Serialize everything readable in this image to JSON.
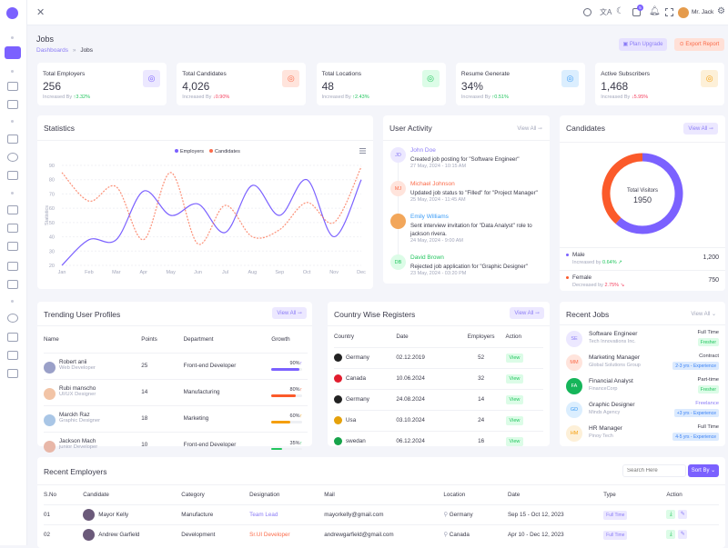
{
  "header": {
    "user": "Mr. Jack",
    "notification_count": "5"
  },
  "page": {
    "title": "Jobs",
    "breadcrumb": [
      "Dashboards",
      "Jobs"
    ],
    "plan_upgrade": "Plan Upgrade",
    "export_report": "Export Report"
  },
  "stats": [
    {
      "label": "Total Employers",
      "value": "256",
      "trend_label": "Increased By",
      "trend": "3.32%",
      "dir": "up",
      "icon": "users-icon",
      "color": "#7b61ff",
      "bg": "#ece8ff"
    },
    {
      "label": "Total Candidates",
      "value": "4,026",
      "trend_label": "Increased By",
      "trend": "0.90%",
      "dir": "down",
      "icon": "group-icon",
      "color": "#fb6b4a",
      "bg": "#ffe4dc"
    },
    {
      "label": "Total Locations",
      "value": "48",
      "trend_label": "Increased By",
      "trend": "2.43%",
      "dir": "up",
      "icon": "map-pin-icon",
      "color": "#22c55e",
      "bg": "#dcfce7"
    },
    {
      "label": "Resume Generate",
      "value": "34%",
      "trend_label": "Increased By",
      "trend": "0.51%",
      "dir": "up",
      "icon": "document-icon",
      "color": "#3b9cf6",
      "bg": "#dbeefe"
    },
    {
      "label": "Active Subscribers",
      "value": "1,468",
      "trend_label": "Increased By",
      "trend": "5.95%",
      "dir": "down",
      "icon": "id-card-icon",
      "color": "#f59e0b",
      "bg": "#fdf0d8"
    }
  ],
  "statistics": {
    "title": "Statistics",
    "menu_icon": "hamburger-icon"
  },
  "chart_data": {
    "type": "line",
    "title": "",
    "ylabel": "Statistics",
    "xlabel": "",
    "categories": [
      "Jan",
      "Feb",
      "Mar",
      "Apr",
      "May",
      "Jun",
      "Jul",
      "Aug",
      "Sep",
      "Oct",
      "Nov",
      "Dec"
    ],
    "ylim": [
      20,
      90
    ],
    "yticks": [
      20,
      30,
      40,
      50,
      60,
      70,
      80,
      90
    ],
    "legend": "top-center",
    "grid": true,
    "series": [
      {
        "name": "Employers",
        "color": "#7b61ff",
        "values": [
          20,
          38,
          38,
          72,
          55,
          63,
          43,
          76,
          55,
          80,
          40,
          80
        ]
      },
      {
        "name": "Candidates",
        "color": "#fb6b4a",
        "dashed": true,
        "values": [
          85,
          65,
          75,
          38,
          85,
          35,
          62,
          40,
          45,
          64,
          50,
          89
        ]
      }
    ]
  },
  "activity": {
    "title": "User Activity",
    "view_all": "View All",
    "items": [
      {
        "initials": "JD",
        "name": "John Doe",
        "text": "Created job posting for \"Software Engineer\"",
        "time": "27 May, 2024 - 10:15 AM",
        "color": "#8b7cf6",
        "bg": "#ece8ff"
      },
      {
        "initials": "MJ",
        "name": "Michael Johnson",
        "text": "Updated job status to \"Filled\" for \"Project Manager\"",
        "time": "25 May, 2024 - 11:45 AM",
        "color": "#fb6b4a",
        "bg": "#ffe4dc"
      },
      {
        "initials": "",
        "name": "Emily Williams",
        "text": "Sent interview invitation for \"Data Analyst\" role to jackson rivera.",
        "time": "24 May, 2024 - 9:00 AM",
        "color": "#3b9cf6",
        "bg": "#f2a65a"
      },
      {
        "initials": "DB",
        "name": "David Brown",
        "text": "Rejected job application for \"Graphic Designer\"",
        "time": "23 May, 2024 - 03:20 PM",
        "color": "#22c55e",
        "bg": "#dcfce7"
      }
    ]
  },
  "candidates": {
    "title": "Candidates",
    "view_all": "View All",
    "center_label": "Total Visitors",
    "total": "1950",
    "segments": [
      {
        "label": "Male",
        "trend_label": "Increased by",
        "trend": "0.64%",
        "dir": "up",
        "value": "1,200",
        "number": 1200,
        "color": "#7b61ff"
      },
      {
        "label": "Female",
        "trend_label": "Decreased by",
        "trend": "2.75%",
        "dir": "down",
        "value": "750",
        "number": 750,
        "color": "#fb5a2a"
      }
    ]
  },
  "trending": {
    "title": "Trending User Profiles",
    "view_all": "View All",
    "columns": [
      "Name",
      "Points",
      "Department",
      "Growth"
    ],
    "rows": [
      {
        "name": "Robert anii",
        "role": "Web Developer",
        "points": "25",
        "dept": "Front-end Developer",
        "growth": "90%",
        "pct": 90,
        "color": "#7b61ff",
        "avatar": "#9aa0c8"
      },
      {
        "name": "Rubi manscho",
        "role": "UI/UX Designer",
        "points": "14",
        "dept": "Manufacturing",
        "growth": "80%",
        "pct": 80,
        "color": "#fb5a2a",
        "avatar": "#f2c4a6"
      },
      {
        "name": "Marckh Raz",
        "role": "Graphic Designer",
        "points": "18",
        "dept": "Marketing",
        "growth": "60%",
        "pct": 60,
        "color": "#f59e0b",
        "avatar": "#a9c6e6"
      },
      {
        "name": "Jackson Mach",
        "role": "junior Developer",
        "points": "10",
        "dept": "Front-end Developer",
        "growth": "35%",
        "pct": 35,
        "color": "#22c55e",
        "avatar": "#e8b7a8"
      }
    ]
  },
  "country": {
    "title": "Country Wise Registers",
    "view_all": "View All",
    "columns": [
      "Country",
      "Date",
      "Employers",
      "Action"
    ],
    "rows": [
      {
        "country": "Germany",
        "date": "02.12.2019",
        "employers": "52",
        "action": "View",
        "flag": "#222"
      },
      {
        "country": "Canada",
        "date": "10.06.2024",
        "employers": "32",
        "action": "View",
        "flag": "#e11d2e"
      },
      {
        "country": "Germany",
        "date": "24.08.2024",
        "employers": "14",
        "action": "View",
        "flag": "#222"
      },
      {
        "country": "Usa",
        "date": "03.10.2024",
        "employers": "24",
        "action": "View",
        "flag": "#e5a10b"
      },
      {
        "country": "swedan",
        "date": "06.12.2024",
        "employers": "16",
        "action": "View",
        "flag": "#16a34a"
      }
    ]
  },
  "jobs": {
    "title": "Recent Jobs",
    "view_all": "View All",
    "items": [
      {
        "initials": "SE",
        "title": "Software Engineer",
        "company": "Tech Innovations Inc.",
        "type": "Full Time",
        "badge": "Fresher",
        "badge_class": "bg",
        "color": "#8b7cf6",
        "bg": "#ece8ff",
        "type_color": "#3a3a4a"
      },
      {
        "initials": "MM",
        "title": "Marketing Manager",
        "company": "Global Solutions Group",
        "type": "Contract",
        "badge": "2-3 yrs - Experience",
        "badge_class": "bb",
        "color": "#fb6b4a",
        "bg": "#ffe4dc",
        "type_color": "#3a3a4a"
      },
      {
        "initials": "FA",
        "title": "Financial Analyst",
        "company": "FinanceCorp",
        "type": "Part-time",
        "badge": "Fresher",
        "badge_class": "bg",
        "color": "#fff",
        "bg": "#16b55a",
        "type_color": "#3a3a4a"
      },
      {
        "initials": "GD",
        "title": "Graphic Designer",
        "company": "Minds Agency",
        "type": "Freelance",
        "badge": "+3 yrs - Experience",
        "badge_class": "bb",
        "color": "#3b9cf6",
        "bg": "#dbeefe",
        "type_color": "#8b7cf6"
      },
      {
        "initials": "HM",
        "title": "HR Manager",
        "company": "Pinoy Tech",
        "type": "Full Time",
        "badge": "4-5 yrs - Experience",
        "badge_class": "bb",
        "color": "#f59e0b",
        "bg": "#fdf0d8",
        "type_color": "#3a3a4a"
      }
    ]
  },
  "employers": {
    "title": "Recent Employers",
    "search_placeholder": "Search Here",
    "sort_label": "Sort By",
    "columns": [
      "S.No",
      "Candidate",
      "Category",
      "Designation",
      "Mail",
      "Location",
      "Date",
      "Type",
      "Action"
    ],
    "rows": [
      {
        "sno": "01",
        "name": "Mayor Kelly",
        "category": "Manufacture",
        "designation": "Team Lead",
        "des_color": "#8b7cf6",
        "mail": "mayorkelly@gmail.com",
        "location": "Germany",
        "date": "Sep 15 - Oct 12, 2023",
        "type": "Full Time"
      },
      {
        "sno": "02",
        "name": "Andrew Garfield",
        "category": "Development",
        "designation": "Sr.UI Developer",
        "des_color": "#fb6b4a",
        "mail": "andrewgarfield@gmail.com",
        "location": "Canada",
        "date": "Apr 10 - Dec 12, 2023",
        "type": "Full Time"
      }
    ]
  }
}
